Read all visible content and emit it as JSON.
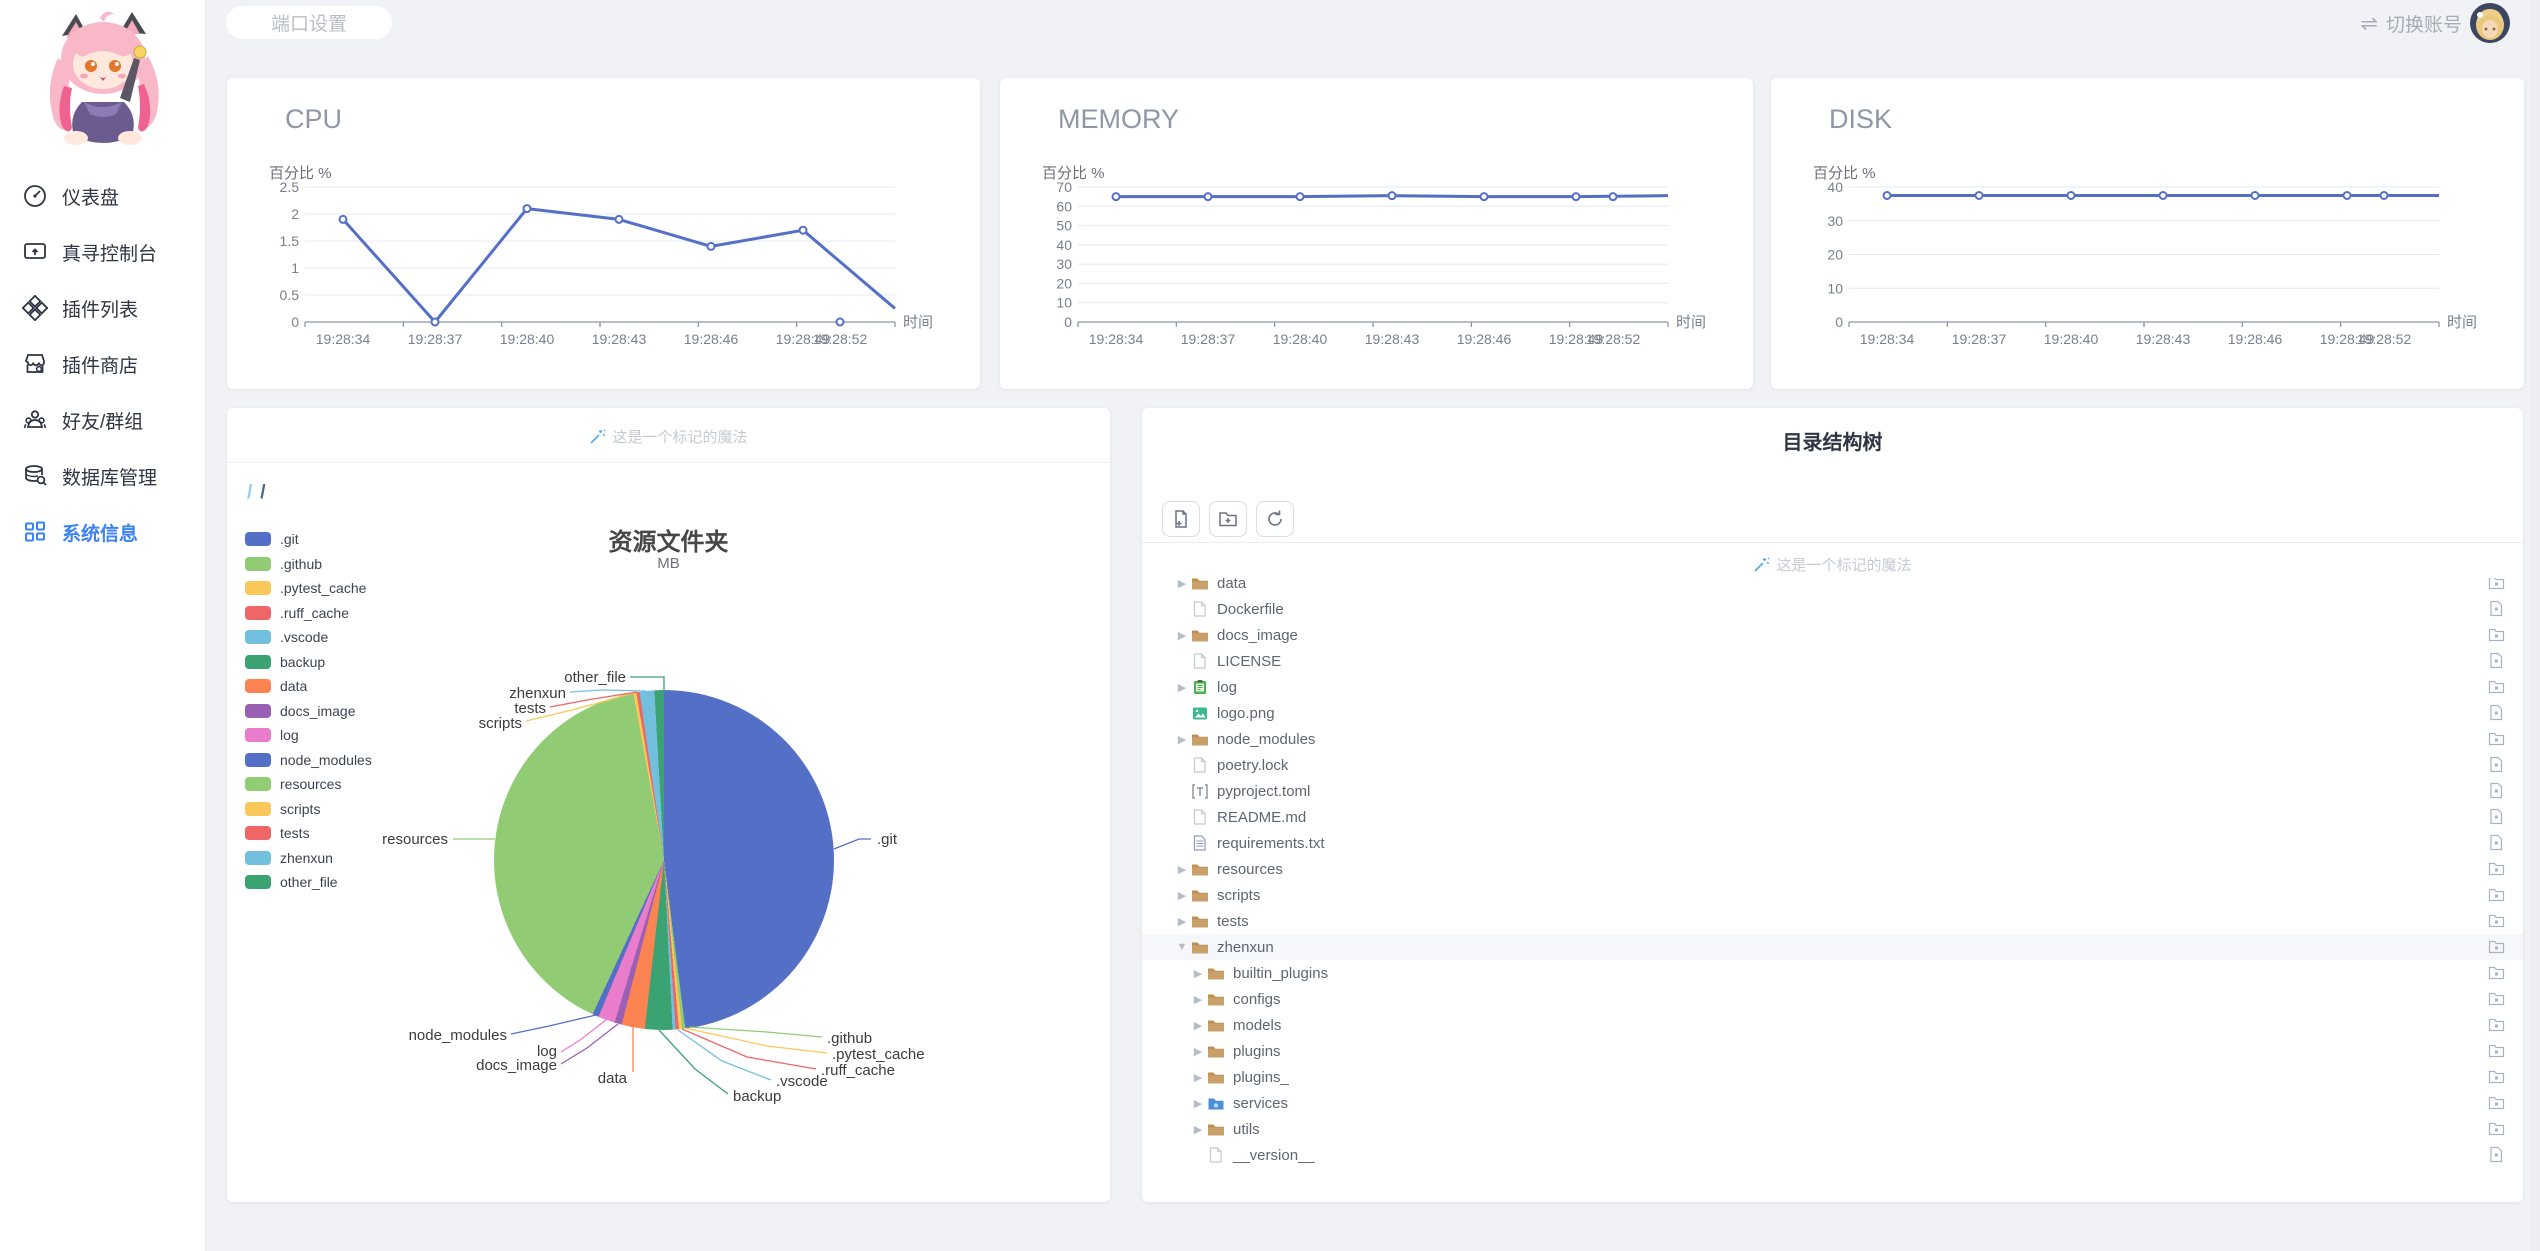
{
  "colors": {
    "palette": [
      "#5470c6",
      "#91cc75",
      "#fac858",
      "#ee6666",
      "#73c0de",
      "#3ba272",
      "#fc8452",
      "#9a60b4",
      "#ea7ccc"
    ],
    "accent": "#3b82f6",
    "line": "#5470c6",
    "grid": "#e3e8f2",
    "axis": "#8e95a3",
    "tick_text": "#787f8c",
    "folder_icon": "#bf8f52",
    "muted_text": "#c6cbd3"
  },
  "topbar": {
    "port_button": "端口设置",
    "switch_account": "切换账号",
    "switch_icon": "⇌"
  },
  "sidebar": {
    "items": [
      {
        "label": "仪表盘",
        "slug": "dashboard",
        "icon": "gauge-icon",
        "active": false
      },
      {
        "label": "真寻控制台",
        "slug": "console",
        "icon": "console-icon",
        "active": false
      },
      {
        "label": "插件列表",
        "slug": "plugin-list",
        "icon": "plugins-icon",
        "active": false
      },
      {
        "label": "插件商店",
        "slug": "plugin-store",
        "icon": "store-icon",
        "active": false
      },
      {
        "label": "好友/群组",
        "slug": "friends-groups",
        "icon": "friends-icon",
        "active": false
      },
      {
        "label": "数据库管理",
        "slug": "database",
        "icon": "database-icon",
        "active": false
      },
      {
        "label": "系统信息",
        "slug": "system-info",
        "icon": "grid-icon",
        "active": true
      }
    ]
  },
  "chart_data": [
    {
      "id": "cpu",
      "type": "line",
      "title": "CPU",
      "ylabel": "百分比 %",
      "xlabel": "时间",
      "x": [
        "19:28:34",
        "19:28:37",
        "19:28:40",
        "19:28:43",
        "19:28:46",
        "19:28:49",
        "19:28:52"
      ],
      "values": [
        1.9,
        0,
        2.1,
        1.9,
        1.4,
        1.7,
        0
      ],
      "trail_value": 0.25,
      "ylim": [
        0,
        2.5
      ],
      "yticks": [
        0,
        0.5,
        1,
        1.5,
        2,
        2.5
      ],
      "grid": true,
      "legend": "none"
    },
    {
      "id": "memory",
      "type": "line",
      "title": "MEMORY",
      "ylabel": "百分比 %",
      "xlabel": "时间",
      "x": [
        "19:28:34",
        "19:28:37",
        "19:28:40",
        "19:28:43",
        "19:28:46",
        "19:28:49",
        "19:28:52"
      ],
      "values": [
        65,
        65,
        65,
        65.5,
        65,
        65,
        65
      ],
      "trail_value": 65.5,
      "ylim": [
        0,
        70
      ],
      "yticks": [
        0,
        10,
        20,
        30,
        40,
        50,
        60,
        70
      ],
      "grid": true,
      "legend": "none"
    },
    {
      "id": "disk",
      "type": "line",
      "title": "DISK",
      "ylabel": "百分比 %",
      "xlabel": "时间",
      "x": [
        "19:28:34",
        "19:28:37",
        "19:28:40",
        "19:28:43",
        "19:28:46",
        "19:28:49",
        "19:28:52"
      ],
      "values": [
        37.5,
        37.5,
        37.5,
        37.5,
        37.5,
        37.5,
        37.5
      ],
      "trail_value": 37.5,
      "ylim": [
        0,
        40
      ],
      "yticks": [
        0,
        10,
        20,
        30,
        40
      ],
      "grid": true,
      "legend": "none"
    },
    {
      "id": "folders",
      "type": "pie",
      "title": "资源文件夹",
      "subtitle": "MB",
      "categories": [
        ".git",
        ".github",
        ".pytest_cache",
        ".ruff_cache",
        ".vscode",
        "backup",
        "data",
        "docs_image",
        "log",
        "node_modules",
        "resources",
        "scripts",
        "tests",
        "zhenxun",
        "other_file"
      ],
      "values": [
        480,
        3,
        3,
        3,
        3,
        26,
        22,
        7,
        16,
        6,
        402,
        3,
        3,
        14,
        9
      ],
      "legend": "left"
    }
  ],
  "pie_card": {
    "marker": "这是一个标记的魔法",
    "breadcrumb_sep1": "/",
    "breadcrumb_sep2": "/"
  },
  "tree_card": {
    "title": "目录结构树",
    "marker": "这是一个标记的魔法",
    "toolbar": [
      {
        "name": "new-file",
        "icon": "file-plus-icon"
      },
      {
        "name": "new-folder",
        "icon": "folder-plus-icon"
      },
      {
        "name": "refresh",
        "icon": "refresh-icon"
      }
    ],
    "rows": [
      {
        "name": "data",
        "icon": "folder",
        "kind": "folder",
        "caret": "collapsed",
        "level": 0
      },
      {
        "name": "Dockerfile",
        "icon": "file",
        "kind": "file",
        "caret": "none",
        "level": 0
      },
      {
        "name": "docs_image",
        "icon": "folder",
        "kind": "folder",
        "caret": "collapsed",
        "level": 0
      },
      {
        "name": "LICENSE",
        "icon": "file",
        "kind": "file",
        "caret": "none",
        "level": 0
      },
      {
        "name": "log",
        "icon": "log",
        "kind": "folder",
        "caret": "collapsed",
        "level": 0
      },
      {
        "name": "logo.png",
        "icon": "image",
        "kind": "file",
        "caret": "none",
        "level": 0
      },
      {
        "name": "node_modules",
        "icon": "folder",
        "kind": "folder",
        "caret": "collapsed",
        "level": 0
      },
      {
        "name": "poetry.lock",
        "icon": "file",
        "kind": "file",
        "caret": "none",
        "level": 0
      },
      {
        "name": "pyproject.toml",
        "icon": "toml",
        "kind": "file",
        "caret": "none",
        "level": 0
      },
      {
        "name": "README.md",
        "icon": "file",
        "kind": "file",
        "caret": "none",
        "level": 0
      },
      {
        "name": "requirements.txt",
        "icon": "text",
        "kind": "file",
        "caret": "none",
        "level": 0
      },
      {
        "name": "resources",
        "icon": "folder",
        "kind": "folder",
        "caret": "collapsed",
        "level": 0
      },
      {
        "name": "scripts",
        "icon": "folder",
        "kind": "folder",
        "caret": "collapsed",
        "level": 0
      },
      {
        "name": "tests",
        "icon": "folder",
        "kind": "folder",
        "caret": "collapsed",
        "level": 0
      },
      {
        "name": "zhenxun",
        "icon": "folder",
        "kind": "folder",
        "caret": "expanded",
        "level": 0,
        "highlighted": true
      },
      {
        "name": "builtin_plugins",
        "icon": "folder",
        "kind": "folder",
        "caret": "collapsed",
        "level": 1
      },
      {
        "name": "configs",
        "icon": "folder",
        "kind": "folder",
        "caret": "collapsed",
        "level": 1
      },
      {
        "name": "models",
        "icon": "folder",
        "kind": "folder",
        "caret": "collapsed",
        "level": 1
      },
      {
        "name": "plugins",
        "icon": "folder",
        "kind": "folder",
        "caret": "collapsed",
        "level": 1
      },
      {
        "name": "plugins_",
        "icon": "folder",
        "kind": "folder",
        "caret": "collapsed",
        "level": 1
      },
      {
        "name": "services",
        "icon": "services",
        "kind": "folder",
        "caret": "collapsed",
        "level": 1
      },
      {
        "name": "utils",
        "icon": "folder",
        "kind": "folder",
        "caret": "collapsed",
        "level": 1
      },
      {
        "name": "__version__",
        "icon": "file",
        "kind": "file",
        "caret": "none",
        "level": 1
      }
    ]
  }
}
